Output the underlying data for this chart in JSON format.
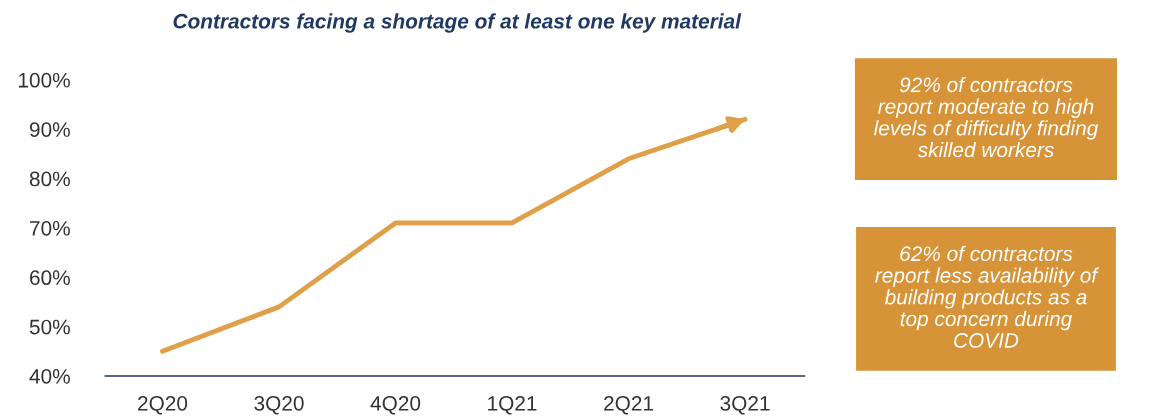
{
  "chart_data": {
    "type": "line",
    "title": "Contractors facing a shortage of at least one key material",
    "categories": [
      "2Q20",
      "3Q20",
      "4Q20",
      "1Q21",
      "2Q21",
      "3Q21"
    ],
    "series": [
      {
        "color": "#e0a04a",
        "values": [
          45,
          54,
          71,
          71,
          84,
          92
        ]
      }
    ],
    "ylim": [
      40,
      100
    ],
    "yticks": [
      {
        "value": 40,
        "label": "40%"
      },
      {
        "value": 50,
        "label": "50%"
      },
      {
        "value": 60,
        "label": "60%"
      },
      {
        "value": 70,
        "label": "70%"
      },
      {
        "value": 80,
        "label": "80%"
      },
      {
        "value": 90,
        "label": "90%"
      },
      {
        "value": 100,
        "label": "100%"
      }
    ],
    "grid": false,
    "legend": false,
    "marker": "none",
    "line_style": "solid",
    "annotations": [
      "92% of contractors\nreport moderate to high\nlevels of difficulty finding\nskilled workers",
      "62% of contractors\nreport less availability of\nbuilding products as a\ntop concern during\nCOVID"
    ]
  }
}
